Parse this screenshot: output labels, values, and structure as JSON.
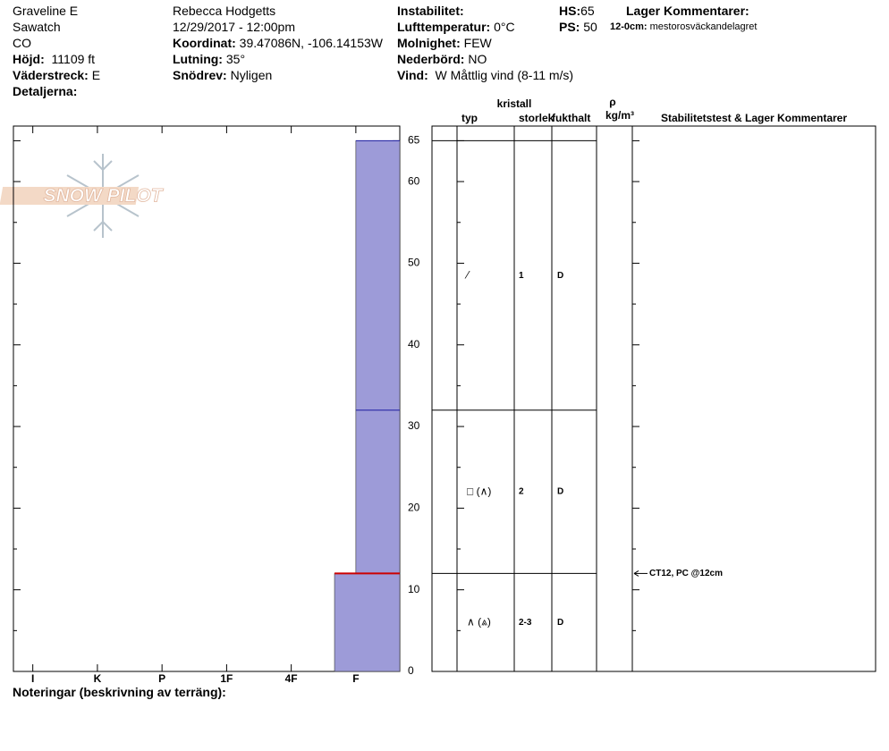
{
  "header": {
    "site": "Graveline E",
    "range": "Sawatch",
    "state": "CO",
    "elevation": {
      "label": "Höjd:",
      "value": "11109 ft"
    },
    "aspect": {
      "label": "Väderstreck:",
      "value": "E"
    },
    "details": {
      "label": "Detaljerna:"
    },
    "observer": "Rebecca Hodgetts",
    "datetime": "12/29/2017 - 12:00pm",
    "coordinates": {
      "label": "Koordinat:",
      "value": "39.47086N, -106.14153W"
    },
    "slope": {
      "label": "Lutning:",
      "value": "35°"
    },
    "drift": {
      "label": "Snödrev:",
      "value": "Nyligen"
    },
    "instability": {
      "label": "Instabilitet:"
    },
    "air_temp": {
      "label": "Lufttemperatur:",
      "value": "0°C"
    },
    "sky": {
      "label": "Molnighet:",
      "value": "FEW"
    },
    "precip": {
      "label": "Nederbörd:",
      "value": "NO"
    },
    "wind": {
      "label": "Vind:",
      "value": "W Måttlig vind (8-11 m/s)"
    },
    "hs": {
      "label": "HS:",
      "value": 65
    },
    "ps": {
      "label": "PS:",
      "value": 50
    },
    "layer_comments": {
      "label": "Lager Kommentarer:",
      "items": [
        {
          "range": "12-0cm:",
          "text": "mestorosväckandelagret"
        }
      ]
    }
  },
  "logo": "SNOW PILOT",
  "notes": {
    "label": "Noteringar (beskrivning av terräng):"
  },
  "columns": {
    "crystal": "kristall",
    "type": "typ",
    "size": "storlek",
    "moisture": "fukthalt",
    "density_symbol": "ρ",
    "density_unit": "kg/m³",
    "stability": "Stabilitetstest & Lager Kommentarer"
  },
  "chart_data": {
    "type": "snow-profile",
    "ylim": [
      0,
      66.8
    ],
    "yticks": [
      0,
      10,
      20,
      30,
      40,
      50,
      60,
      65
    ],
    "minor_yticks": [
      5,
      15,
      25,
      35,
      45,
      55
    ],
    "hardness_categories": [
      "I",
      "K",
      "P",
      "1F",
      "4F",
      "F"
    ],
    "xlim": [
      -0.3,
      5.68
    ],
    "color": "#9d9bd8",
    "layers": [
      {
        "top": 65,
        "bottom": 32,
        "hardness": 5,
        "crystal": "⁄",
        "size": 1,
        "moisture": "D"
      },
      {
        "top": 32,
        "bottom": 12,
        "hardness": 5,
        "crystal": "□ (∧)",
        "size": 2,
        "moisture": "D"
      },
      {
        "top": 12,
        "bottom": 0,
        "hardness": 4.67,
        "crystal": "∧ (⩓)",
        "size": "2-3",
        "moisture": "D"
      }
    ],
    "critical_layer": 12,
    "critical_color": "#cc0000",
    "stability_tests": [
      {
        "height": 12,
        "label": "CT12, PC @12cm"
      }
    ]
  }
}
